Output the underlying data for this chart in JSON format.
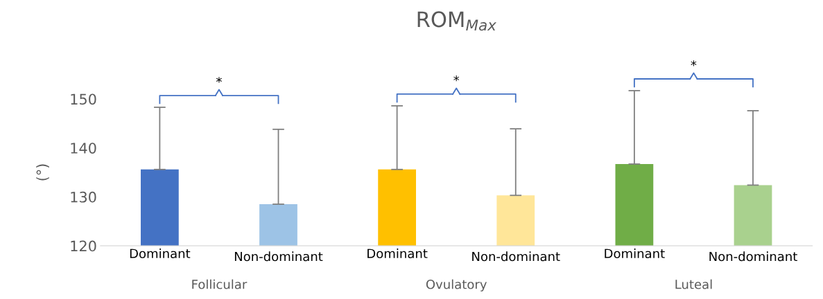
{
  "chart_data": {
    "type": "bar",
    "title": "ROM$_{Max}$",
    "ylabel": "(°)",
    "categories": [
      "Dominant",
      "Non-dominant",
      "Dominant",
      "Non-dominant",
      "Dominant",
      "Non-dominant"
    ],
    "values": [
      135.6,
      128.5,
      135.6,
      130.3,
      136.7,
      132.4
    ],
    "colors": [
      "#4472c4",
      "#9dc3e6",
      "#ffc000",
      "#ffe699",
      "#70ad47",
      "#a9d18e"
    ],
    "errors": [
      [
        135.6,
        148.3
      ],
      [
        128.5,
        143.8
      ],
      [
        135.6,
        148.6
      ],
      [
        130.3,
        143.9
      ],
      [
        136.7,
        151.7
      ],
      [
        132.4,
        147.6
      ]
    ],
    "annotations": [
      "Follicular",
      "Ovulatory",
      "Luteal",
      "*",
      "*",
      "*"
    ],
    "ylim": [
      120,
      150
    ],
    "yticks": [
      120,
      130,
      140,
      150
    ],
    "grid": false
  }
}
